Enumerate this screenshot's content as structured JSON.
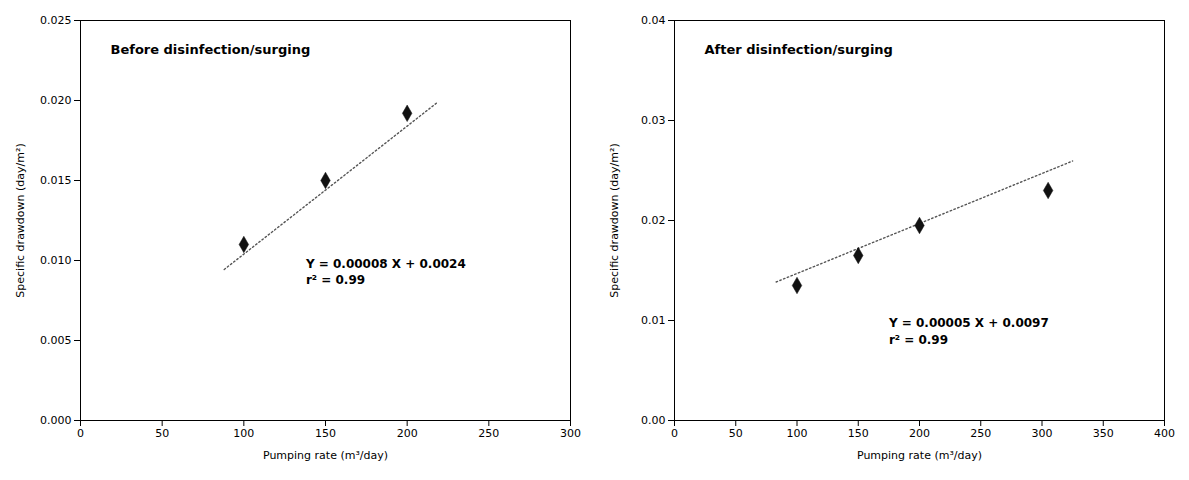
{
  "chart_data": [
    {
      "type": "scatter",
      "title": "Before disinfection/surging",
      "x_label": "Pumping rate (m³/day)",
      "y_label": "Specific drawdown (day/m²)",
      "xlim": [
        0,
        300
      ],
      "ylim": [
        0,
        0.025
      ],
      "xticks": [
        0,
        50,
        100,
        150,
        200,
        250,
        300
      ],
      "yticks": [
        {
          "value": 0,
          "label": "0.000"
        },
        0.005,
        {
          "value": 0.01,
          "label": "0.010"
        },
        0.015,
        {
          "value": 0.02,
          "label": "0.020"
        },
        0.025
      ],
      "grid": false,
      "series": [
        {
          "type": "line",
          "line_style": "dotted",
          "color": "#555555",
          "x": [
            88,
            218
          ],
          "values": [
            0.00944,
            0.01984
          ]
        },
        {
          "type": "scatter",
          "marker": "diamond",
          "color": "#111111",
          "x": [
            100,
            150,
            200
          ],
          "values": [
            0.011,
            0.015,
            0.0192
          ]
        }
      ],
      "annotations": [
        {
          "text": "Y = 0.00008 X + 0.0024\nr² = 0.99",
          "x": 138,
          "y": 0.0103
        }
      ]
    },
    {
      "type": "scatter",
      "title": "After disinfection/surging",
      "x_label": "Pumping rate (m³/day)",
      "y_label": "Specific drawdown (day/m²)",
      "xlim": [
        0,
        400
      ],
      "ylim": [
        0,
        0.04
      ],
      "xticks": [
        0,
        50,
        100,
        150,
        200,
        250,
        300,
        350,
        400
      ],
      "yticks": [
        {
          "value": 0,
          "label": "0.00"
        },
        0.01,
        0.02,
        0.03,
        0.04
      ],
      "grid": false,
      "series": [
        {
          "type": "line",
          "line_style": "dotted",
          "color": "#555555",
          "x": [
            83,
            325
          ],
          "values": [
            0.01385,
            0.02595
          ]
        },
        {
          "type": "scatter",
          "marker": "diamond",
          "color": "#111111",
          "x": [
            100,
            150,
            200,
            305
          ],
          "values": [
            0.0135,
            0.0165,
            0.0195,
            0.023
          ]
        }
      ],
      "annotations": [
        {
          "text": "Y = 0.00005 X + 0.0097\nr² = 0.99",
          "x": 175,
          "y": 0.0105
        }
      ]
    }
  ]
}
